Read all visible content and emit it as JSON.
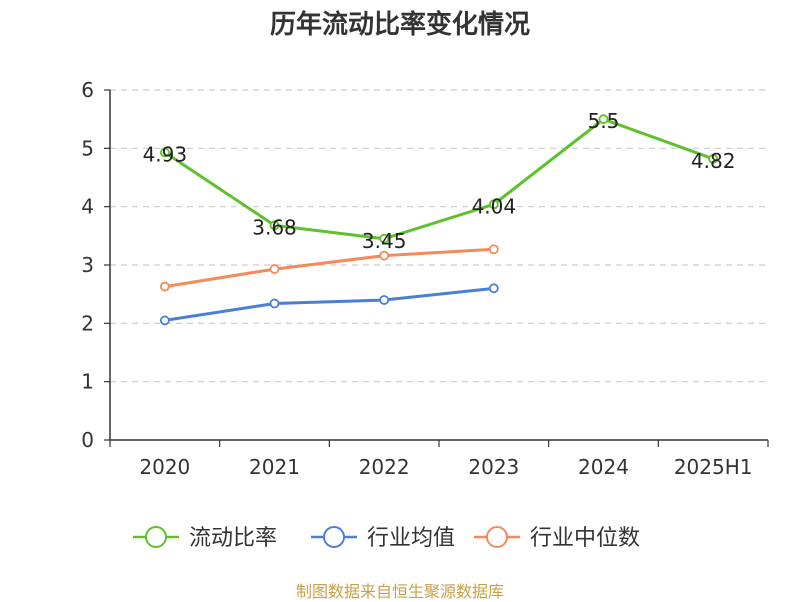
{
  "chart_data": {
    "type": "line",
    "title": "历年流动比率变化情况",
    "categories": [
      "2020",
      "2021",
      "2022",
      "2023",
      "2024",
      "2025H1"
    ],
    "ylim": [
      0,
      6
    ],
    "yticks": [
      "0",
      "1",
      "2",
      "3",
      "4",
      "5",
      "6"
    ],
    "grid": true,
    "legend_position": "bottom",
    "series": [
      {
        "name": "流动比率",
        "color": "#5cc12b",
        "show_labels": true,
        "values": [
          4.93,
          3.68,
          3.45,
          4.04,
          5.5,
          4.82
        ],
        "labels": [
          "4.93",
          "3.68",
          "3.45",
          "4.04",
          "5.5",
          "4.82"
        ]
      },
      {
        "name": "行业均值",
        "color": "#4a7fd6",
        "show_labels": false,
        "values": [
          2.05,
          2.34,
          2.4,
          2.6,
          null,
          null
        ]
      },
      {
        "name": "行业中位数",
        "color": "#f48a5a",
        "show_labels": false,
        "values": [
          2.63,
          2.93,
          3.16,
          3.27,
          null,
          null
        ]
      }
    ]
  },
  "source_note": "制图数据来自恒生聚源数据库"
}
